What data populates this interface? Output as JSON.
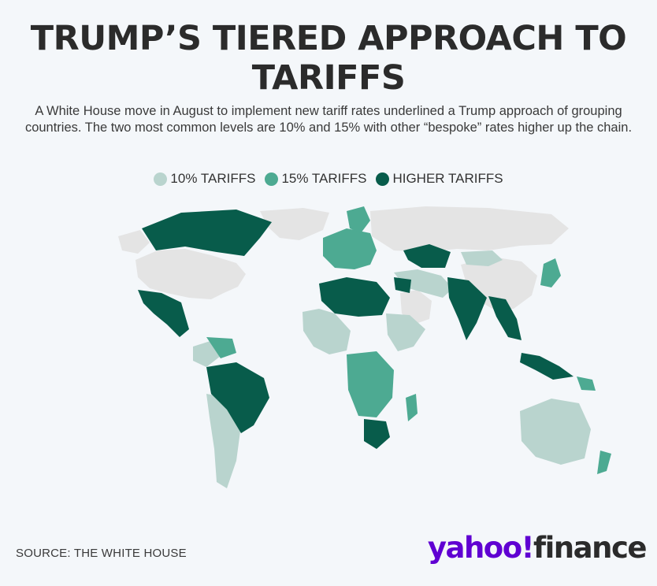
{
  "title": "TRUMP’S TIERED APPROACH TO TARIFFS",
  "subtitle": "A White House move in August to implement new tariff rates underlined a Trump approach of grouping countries. The two most common levels are 10% and 15% with other “bespoke” rates higher up the chain.",
  "legend": [
    {
      "label": "10% TARIFFS",
      "color": "#b9d4ce"
    },
    {
      "label": "15% TARIFFS",
      "color": "#4daa92"
    },
    {
      "label": "HIGHER TARIFFS",
      "color": "#085c4b"
    }
  ],
  "map": {
    "land_color": "#e4e4e4",
    "ocean_color": "#f4f7fa"
  },
  "source": "SOURCE: THE WHITE HOUSE",
  "logo": {
    "brand": "yahoo",
    "mark": "!",
    "product": "finance"
  }
}
